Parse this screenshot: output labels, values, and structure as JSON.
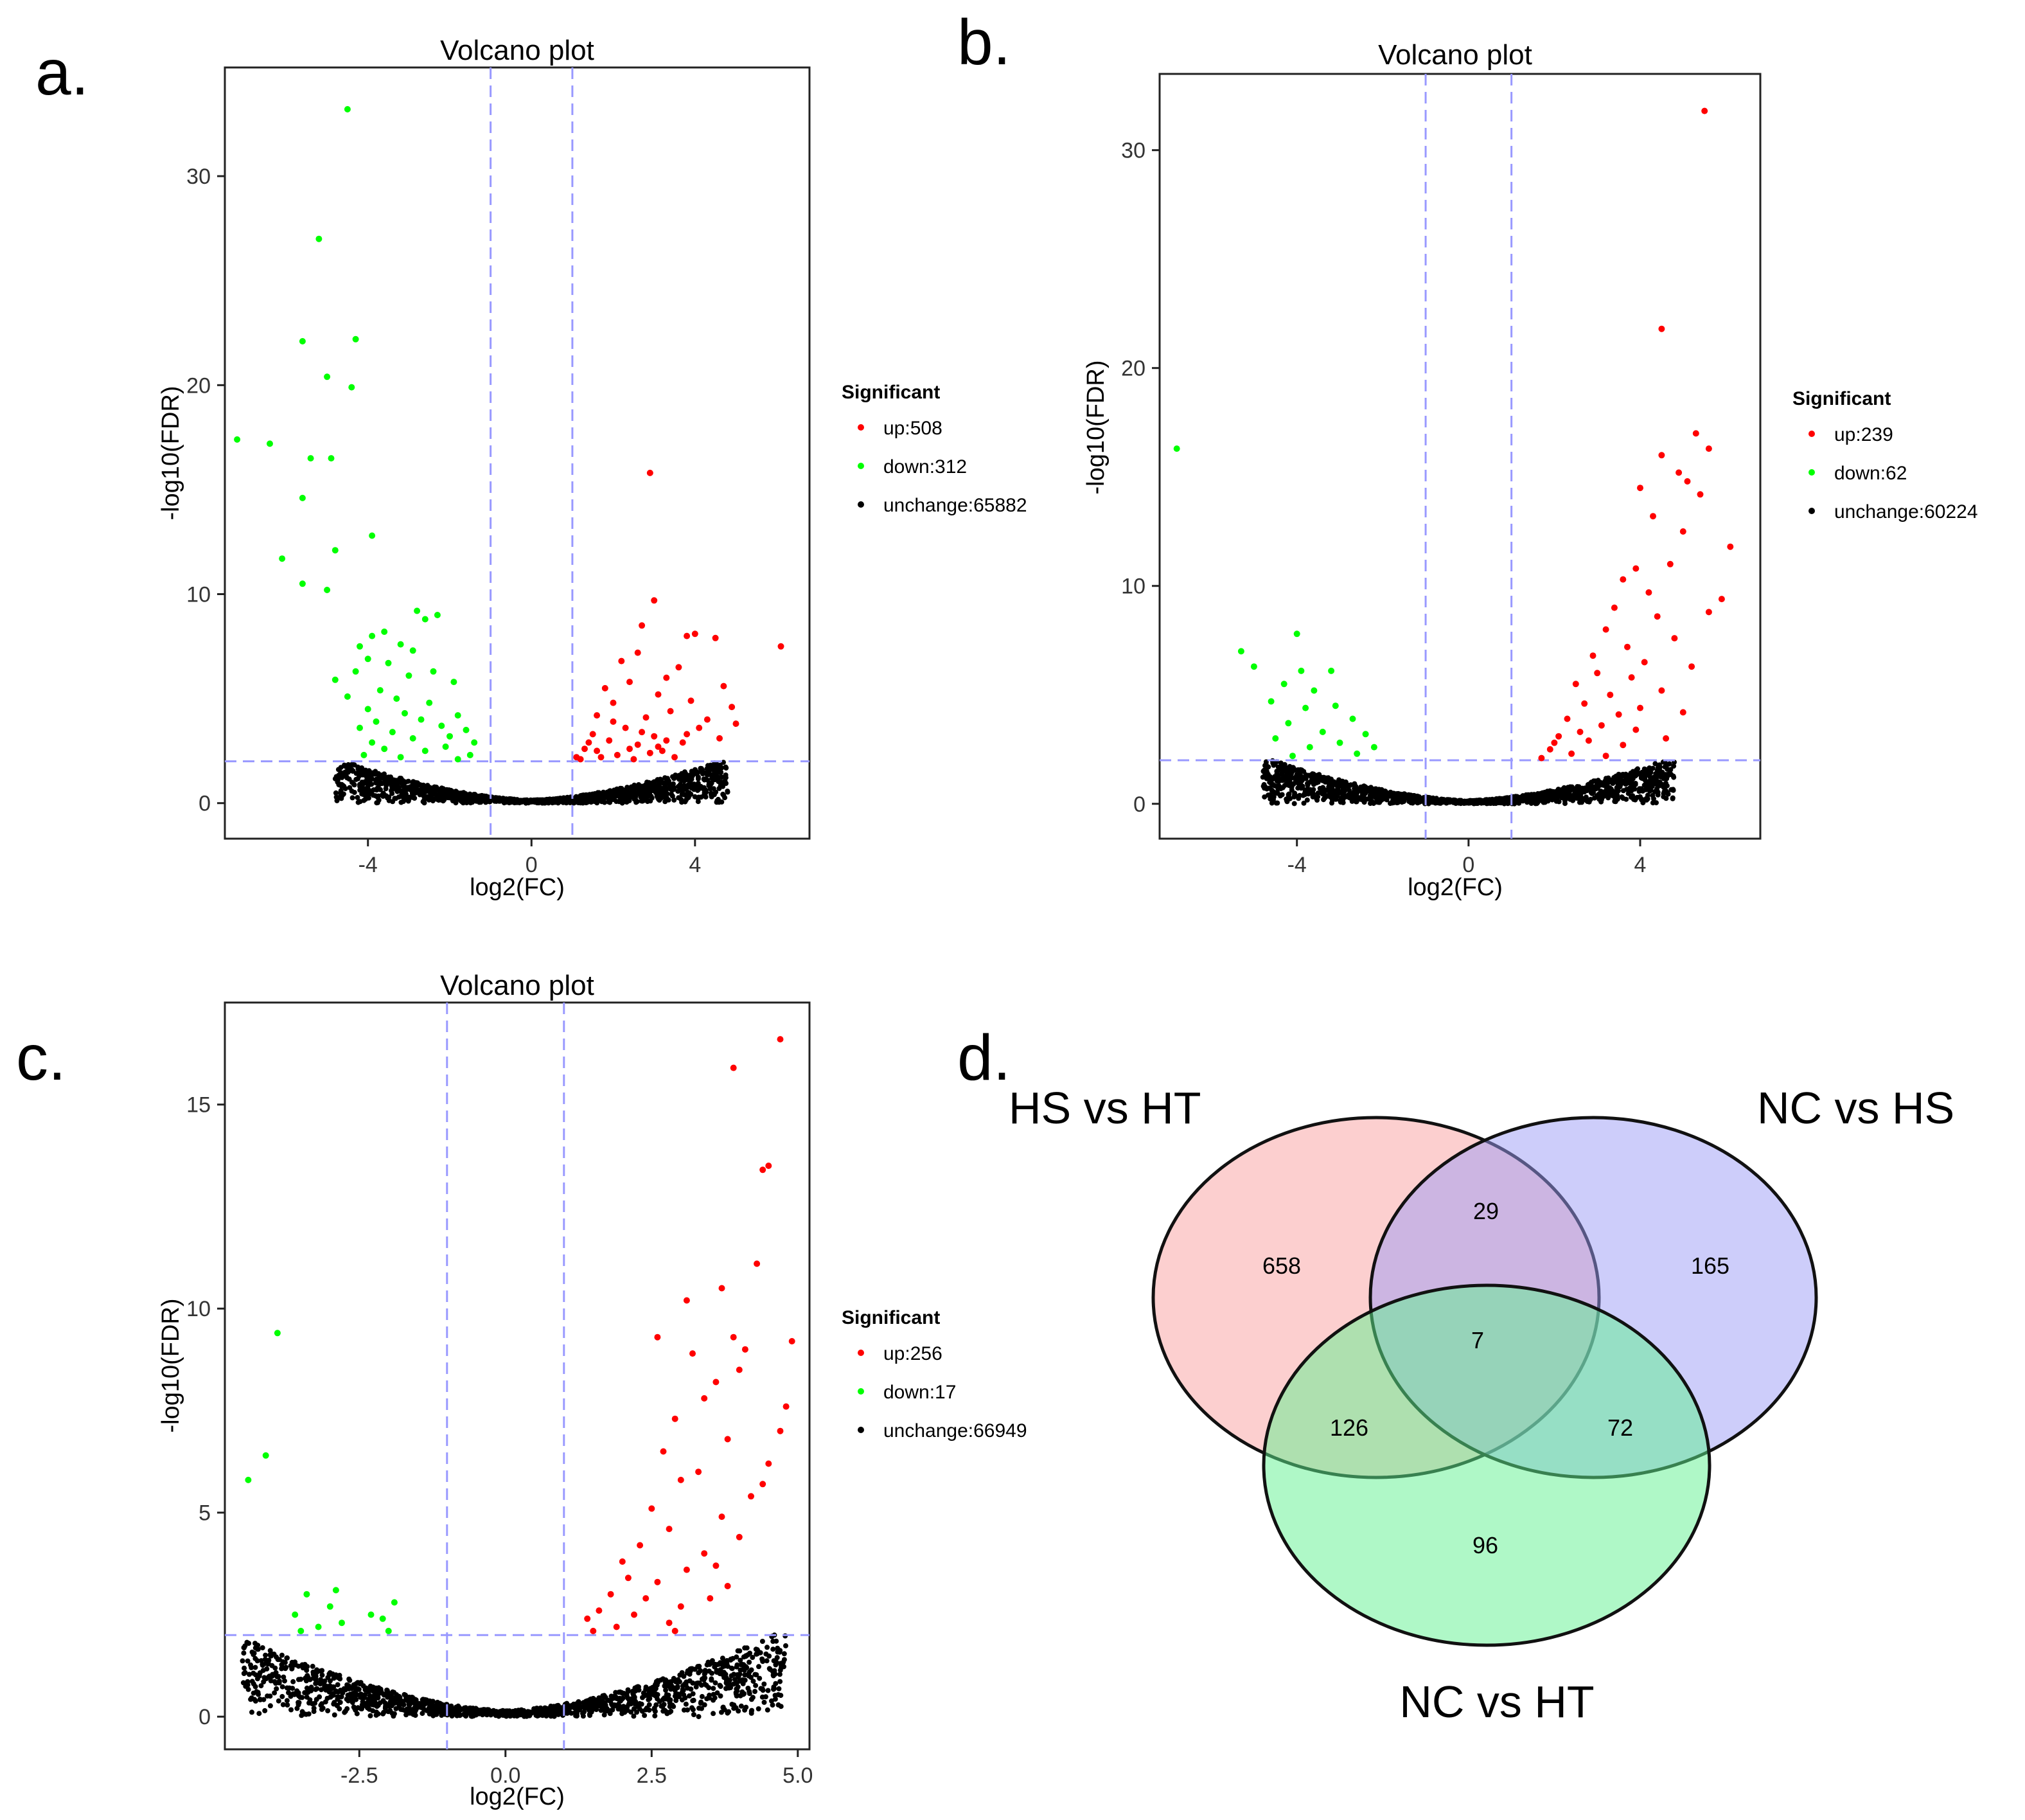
{
  "chart_data": [
    {
      "type": "scatter",
      "panel_label": "a.",
      "title": "Volcano plot",
      "xlabel": "log2(FC)",
      "ylabel": "-log10(FDR)",
      "xlim": [
        -7.5,
        6.8
      ],
      "ylim": [
        -1.7,
        35.2
      ],
      "xticks": [
        -4,
        0,
        4
      ],
      "xtick_labels": [
        "-4",
        "0",
        "4"
      ],
      "yticks": [
        0,
        10,
        20,
        30
      ],
      "ytick_labels": [
        "0",
        "10",
        "20",
        "30"
      ],
      "fc_threshold": 1,
      "fdr_threshold": 2,
      "legend": {
        "title": "Significant",
        "entries": [
          {
            "label": "up:508",
            "color": "#ff0000"
          },
          {
            "label": "down:312",
            "color": "#00ff00"
          },
          {
            "label": "unchange:65882",
            "color": "#000000"
          }
        ]
      },
      "series": [
        {
          "name": "up",
          "color": "#ff0000",
          "points": [
            [
              6.1,
              7.5
            ],
            [
              2.9,
              15.8
            ],
            [
              3.0,
              9.7
            ],
            [
              3.8,
              8.0
            ],
            [
              4.0,
              8.1
            ],
            [
              4.5,
              7.9
            ],
            [
              4.9,
              4.6
            ],
            [
              5.0,
              3.8
            ],
            [
              2.7,
              8.5
            ],
            [
              2.6,
              7.2
            ],
            [
              2.2,
              6.8
            ],
            [
              3.3,
              6.0
            ],
            [
              3.6,
              6.5
            ],
            [
              1.8,
              5.5
            ],
            [
              2.4,
              5.8
            ],
            [
              3.1,
              5.2
            ],
            [
              3.9,
              4.9
            ],
            [
              1.6,
              4.2
            ],
            [
              2.0,
              4.8
            ],
            [
              2.8,
              4.1
            ],
            [
              3.4,
              4.4
            ],
            [
              4.1,
              3.6
            ],
            [
              1.5,
              3.3
            ],
            [
              1.9,
              3.0
            ],
            [
              2.3,
              3.6
            ],
            [
              2.6,
              2.8
            ],
            [
              3.0,
              3.2
            ],
            [
              3.2,
              2.5
            ],
            [
              3.7,
              2.9
            ],
            [
              1.3,
              2.6
            ],
            [
              1.7,
              2.2
            ],
            [
              2.1,
              2.3
            ],
            [
              2.5,
              2.1
            ],
            [
              2.9,
              2.4
            ],
            [
              3.5,
              2.2
            ],
            [
              1.2,
              2.1
            ],
            [
              1.4,
              2.9
            ],
            [
              2.0,
              3.9
            ],
            [
              2.7,
              3.4
            ],
            [
              3.3,
              3.0
            ],
            [
              3.8,
              3.3
            ],
            [
              4.3,
              4.0
            ],
            [
              4.6,
              3.1
            ],
            [
              1.6,
              2.5
            ],
            [
              2.4,
              2.6
            ],
            [
              3.1,
              2.7
            ],
            [
              1.1,
              2.2
            ],
            [
              4.7,
              5.6
            ]
          ]
        },
        {
          "name": "down",
          "color": "#00ff00",
          "points": [
            [
              -4.5,
              33.2
            ],
            [
              -5.2,
              27.0
            ],
            [
              -5.6,
              22.1
            ],
            [
              -4.3,
              22.2
            ],
            [
              -5.0,
              20.4
            ],
            [
              -4.4,
              19.9
            ],
            [
              -7.2,
              17.4
            ],
            [
              -6.4,
              17.2
            ],
            [
              -5.4,
              16.5
            ],
            [
              -4.9,
              16.5
            ],
            [
              -5.6,
              14.6
            ],
            [
              -3.9,
              12.8
            ],
            [
              -4.8,
              12.1
            ],
            [
              -6.1,
              11.7
            ],
            [
              -5.6,
              10.5
            ],
            [
              -5.0,
              10.2
            ],
            [
              -2.8,
              9.2
            ],
            [
              -2.6,
              8.8
            ],
            [
              -2.3,
              9.0
            ],
            [
              -3.6,
              8.2
            ],
            [
              -3.9,
              8.0
            ],
            [
              -4.2,
              7.5
            ],
            [
              -3.2,
              7.6
            ],
            [
              -2.9,
              7.3
            ],
            [
              -4.0,
              6.9
            ],
            [
              -3.5,
              6.7
            ],
            [
              -4.3,
              6.3
            ],
            [
              -3.0,
              6.1
            ],
            [
              -2.4,
              6.3
            ],
            [
              -1.9,
              5.8
            ],
            [
              -4.8,
              5.9
            ],
            [
              -3.7,
              5.4
            ],
            [
              -4.5,
              5.1
            ],
            [
              -3.3,
              5.0
            ],
            [
              -2.5,
              4.8
            ],
            [
              -1.8,
              4.2
            ],
            [
              -4.0,
              4.5
            ],
            [
              -3.1,
              4.3
            ],
            [
              -2.7,
              4.0
            ],
            [
              -3.8,
              3.9
            ],
            [
              -2.2,
              3.7
            ],
            [
              -1.6,
              3.5
            ],
            [
              -4.2,
              3.6
            ],
            [
              -3.4,
              3.4
            ],
            [
              -2.9,
              3.1
            ],
            [
              -2.0,
              3.2
            ],
            [
              -1.4,
              2.9
            ],
            [
              -3.9,
              2.9
            ],
            [
              -3.6,
              2.6
            ],
            [
              -2.6,
              2.5
            ],
            [
              -2.1,
              2.7
            ],
            [
              -1.5,
              2.3
            ],
            [
              -4.1,
              2.3
            ],
            [
              -3.2,
              2.2
            ],
            [
              -1.8,
              2.1
            ]
          ]
        }
      ]
    },
    {
      "type": "scatter",
      "panel_label": "b.",
      "title": "Volcano plot",
      "xlabel": "log2(FC)",
      "ylabel": "-log10(FDR)",
      "xlim": [
        -7.2,
        6.8
      ],
      "ylim": [
        -1.6,
        33.5
      ],
      "xticks": [
        -4,
        0,
        4
      ],
      "xtick_labels": [
        "-4",
        "0",
        "4"
      ],
      "yticks": [
        0,
        10,
        20,
        30
      ],
      "ytick_labels": [
        "0",
        "10",
        "20",
        "30"
      ],
      "fc_threshold": 1,
      "fdr_threshold": 2,
      "legend": {
        "title": "Significant",
        "entries": [
          {
            "label": "up:239",
            "color": "#ff0000"
          },
          {
            "label": "down:62",
            "color": "#00ff00"
          },
          {
            "label": "unchange:60224",
            "color": "#000000"
          }
        ]
      },
      "series": [
        {
          "name": "up",
          "color": "#ff0000",
          "points": [
            [
              5.5,
              31.8
            ],
            [
              4.5,
              21.8
            ],
            [
              5.3,
              17.0
            ],
            [
              5.6,
              16.3
            ],
            [
              4.5,
              16.0
            ],
            [
              4.9,
              15.2
            ],
            [
              5.1,
              14.8
            ],
            [
              4.0,
              14.5
            ],
            [
              5.4,
              14.2
            ],
            [
              4.3,
              13.2
            ],
            [
              6.1,
              11.8
            ],
            [
              5.0,
              12.5
            ],
            [
              4.7,
              11.0
            ],
            [
              3.9,
              10.8
            ],
            [
              3.6,
              10.3
            ],
            [
              4.2,
              9.7
            ],
            [
              5.9,
              9.4
            ],
            [
              3.4,
              9.0
            ],
            [
              4.4,
              8.6
            ],
            [
              5.6,
              8.8
            ],
            [
              3.2,
              8.0
            ],
            [
              4.8,
              7.6
            ],
            [
              3.7,
              7.2
            ],
            [
              2.9,
              6.8
            ],
            [
              4.1,
              6.5
            ],
            [
              5.2,
              6.3
            ],
            [
              3.0,
              6.0
            ],
            [
              3.8,
              5.8
            ],
            [
              2.5,
              5.5
            ],
            [
              4.5,
              5.2
            ],
            [
              3.3,
              5.0
            ],
            [
              2.7,
              4.6
            ],
            [
              4.0,
              4.4
            ],
            [
              3.5,
              4.1
            ],
            [
              2.3,
              3.9
            ],
            [
              3.1,
              3.6
            ],
            [
              3.9,
              3.4
            ],
            [
              2.1,
              3.1
            ],
            [
              2.8,
              2.9
            ],
            [
              3.6,
              2.7
            ],
            [
              1.9,
              2.5
            ],
            [
              2.4,
              2.3
            ],
            [
              3.2,
              2.2
            ],
            [
              1.7,
              2.1
            ],
            [
              2.6,
              3.3
            ],
            [
              4.6,
              3.0
            ],
            [
              5.0,
              4.2
            ],
            [
              2.0,
              2.8
            ]
          ]
        },
        {
          "name": "down",
          "color": "#00ff00",
          "points": [
            [
              -6.8,
              16.3
            ],
            [
              -5.3,
              7.0
            ],
            [
              -4.0,
              7.8
            ],
            [
              -5.0,
              6.3
            ],
            [
              -3.9,
              6.1
            ],
            [
              -3.2,
              6.1
            ],
            [
              -4.3,
              5.5
            ],
            [
              -3.6,
              5.2
            ],
            [
              -4.6,
              4.7
            ],
            [
              -3.8,
              4.4
            ],
            [
              -3.1,
              4.5
            ],
            [
              -2.7,
              3.9
            ],
            [
              -4.2,
              3.7
            ],
            [
              -3.4,
              3.3
            ],
            [
              -2.4,
              3.2
            ],
            [
              -4.5,
              3.0
            ],
            [
              -3.0,
              2.8
            ],
            [
              -2.2,
              2.6
            ],
            [
              -3.7,
              2.6
            ],
            [
              -2.6,
              2.3
            ],
            [
              -4.1,
              2.2
            ]
          ]
        }
      ]
    },
    {
      "type": "scatter",
      "panel_label": "c.",
      "title": "Volcano plot",
      "xlabel": "log2(FC)",
      "ylabel": "-log10(FDR)",
      "xlim": [
        -4.8,
        5.2
      ],
      "ylim": [
        -0.8,
        17.5
      ],
      "xticks": [
        -2.5,
        0,
        2.5,
        5
      ],
      "xtick_labels": [
        "-2.5",
        "0.0",
        "2.5",
        "5.0"
      ],
      "yticks": [
        0,
        5,
        10,
        15
      ],
      "ytick_labels": [
        "0",
        "5",
        "10",
        "15"
      ],
      "fc_threshold": 1,
      "fdr_threshold": 2,
      "legend": {
        "title": "Significant",
        "entries": [
          {
            "label": "up:256",
            "color": "#ff0000"
          },
          {
            "label": "down:17",
            "color": "#00ff00"
          },
          {
            "label": "unchange:66949",
            "color": "#000000"
          }
        ]
      },
      "series": [
        {
          "name": "up",
          "color": "#ff0000",
          "points": [
            [
              4.7,
              16.6
            ],
            [
              3.9,
              15.9
            ],
            [
              4.5,
              13.5
            ],
            [
              4.4,
              13.4
            ],
            [
              4.3,
              11.1
            ],
            [
              3.7,
              10.5
            ],
            [
              3.1,
              10.2
            ],
            [
              4.9,
              9.2
            ],
            [
              2.6,
              9.3
            ],
            [
              3.9,
              9.3
            ],
            [
              4.1,
              9.0
            ],
            [
              4.0,
              8.5
            ],
            [
              3.2,
              8.9
            ],
            [
              3.6,
              8.2
            ],
            [
              4.8,
              7.6
            ],
            [
              3.4,
              7.8
            ],
            [
              2.9,
              7.3
            ],
            [
              4.7,
              7.0
            ],
            [
              3.8,
              6.8
            ],
            [
              2.7,
              6.5
            ],
            [
              4.5,
              6.2
            ],
            [
              3.3,
              6.0
            ],
            [
              3.0,
              5.8
            ],
            [
              4.2,
              5.4
            ],
            [
              2.5,
              5.1
            ],
            [
              3.7,
              4.9
            ],
            [
              2.8,
              4.6
            ],
            [
              4.0,
              4.4
            ],
            [
              2.3,
              4.2
            ],
            [
              3.4,
              4.0
            ],
            [
              2.0,
              3.8
            ],
            [
              3.1,
              3.6
            ],
            [
              2.6,
              3.3
            ],
            [
              3.8,
              3.2
            ],
            [
              1.8,
              3.0
            ],
            [
              2.4,
              2.9
            ],
            [
              3.0,
              2.7
            ],
            [
              1.6,
              2.6
            ],
            [
              2.2,
              2.5
            ],
            [
              2.8,
              2.3
            ],
            [
              1.4,
              2.4
            ],
            [
              1.9,
              2.2
            ],
            [
              3.5,
              2.9
            ],
            [
              4.4,
              5.7
            ],
            [
              3.6,
              3.7
            ],
            [
              2.1,
              3.4
            ],
            [
              1.5,
              2.1
            ],
            [
              2.9,
              2.1
            ]
          ]
        },
        {
          "name": "down",
          "color": "#00ff00",
          "points": [
            [
              -3.9,
              9.4
            ],
            [
              -4.1,
              6.4
            ],
            [
              -4.4,
              5.8
            ],
            [
              -3.4,
              3.0
            ],
            [
              -2.9,
              3.1
            ],
            [
              -3.0,
              2.7
            ],
            [
              -1.9,
              2.8
            ],
            [
              -3.6,
              2.5
            ],
            [
              -2.3,
              2.5
            ],
            [
              -3.2,
              2.2
            ],
            [
              -2.8,
              2.3
            ],
            [
              -2.1,
              2.4
            ],
            [
              -3.5,
              2.1
            ],
            [
              -2.0,
              2.1
            ]
          ]
        }
      ]
    }
  ],
  "venn": {
    "panel_label": "d.",
    "sets": [
      {
        "label": "HS vs HT",
        "color": "#f9a0a0"
      },
      {
        "label": "NC vs HS",
        "color": "#9c9cf5"
      },
      {
        "label": "NC vs HT",
        "color": "#60f290"
      }
    ],
    "regions": {
      "hs_ht_only": "658",
      "nc_hs_only": "165",
      "nc_ht_only": "96",
      "hs_ht_and_nc_hs": "29",
      "hs_ht_and_nc_ht": "126",
      "nc_hs_and_nc_ht": "72",
      "all_three": "7"
    }
  }
}
